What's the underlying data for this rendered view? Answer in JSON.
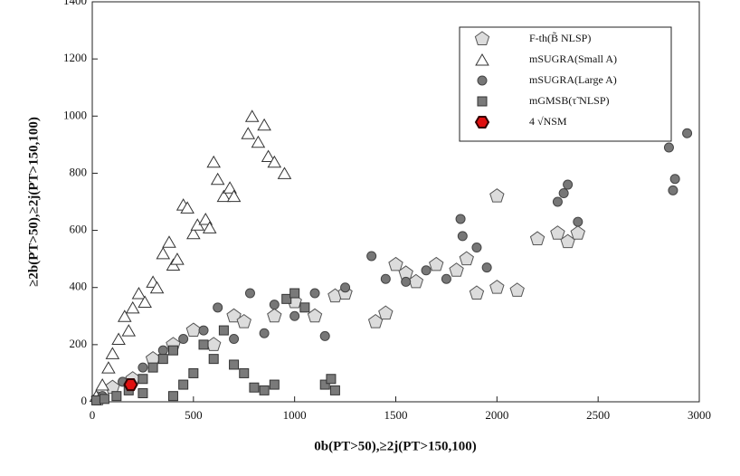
{
  "chart_data": {
    "type": "scatter",
    "xlabel": "0b(PT>50),≥2j(PT>150,100)",
    "ylabel": "≥2b(PT>50),≥2j(PT>150,100)",
    "xlim": [
      0,
      3000
    ],
    "xticks": [
      0,
      500,
      1000,
      1500,
      2000,
      2500,
      3000
    ],
    "ylim": [
      0,
      1400
    ],
    "yticks": [
      0,
      200,
      400,
      600,
      800,
      1000,
      1200,
      1400
    ],
    "legend": "upper right",
    "series": [
      {
        "name": "F-th(B̃ NLSP)",
        "marker": "pentagon",
        "color": "#dcdcdc",
        "x": [
          30,
          100,
          200,
          300,
          400,
          500,
          600,
          700,
          750,
          900,
          1000,
          1100,
          1200,
          1250,
          1400,
          1450,
          1500,
          1550,
          1600,
          1700,
          1800,
          1850,
          1900,
          2000,
          2100,
          2000,
          2200,
          2300,
          2350,
          2400
        ],
        "values": [
          10,
          50,
          80,
          150,
          200,
          250,
          200,
          300,
          280,
          300,
          350,
          300,
          370,
          380,
          280,
          310,
          480,
          450,
          420,
          480,
          460,
          500,
          380,
          400,
          390,
          720,
          570,
          590,
          560,
          590
        ]
      },
      {
        "name": "mSUGRA(Small A)",
        "marker": "triangle",
        "color": "#ffffff",
        "x": [
          20,
          50,
          80,
          100,
          130,
          160,
          180,
          200,
          230,
          260,
          300,
          320,
          350,
          380,
          400,
          420,
          450,
          470,
          500,
          520,
          560,
          580,
          600,
          620,
          650,
          680,
          700,
          770,
          790,
          820,
          850,
          870,
          900,
          950
        ],
        "values": [
          20,
          60,
          120,
          170,
          220,
          300,
          250,
          330,
          380,
          350,
          420,
          400,
          520,
          560,
          480,
          500,
          690,
          680,
          590,
          620,
          640,
          610,
          840,
          780,
          720,
          750,
          720,
          940,
          1000,
          910,
          970,
          860,
          840,
          800
        ]
      },
      {
        "name": "mSUGRA(Large A)",
        "marker": "circle",
        "color": "#777777",
        "x": [
          50,
          150,
          250,
          350,
          450,
          550,
          620,
          700,
          780,
          850,
          900,
          1000,
          1100,
          1150,
          1250,
          1380,
          1450,
          1550,
          1650,
          1750,
          1820,
          1830,
          1900,
          1950,
          2300,
          2330,
          2350,
          2400,
          2850,
          2870,
          2880,
          2940
        ],
        "values": [
          20,
          70,
          120,
          180,
          220,
          250,
          330,
          220,
          380,
          240,
          340,
          300,
          380,
          230,
          400,
          510,
          430,
          420,
          460,
          430,
          640,
          580,
          540,
          470,
          700,
          730,
          760,
          630,
          890,
          740,
          780,
          940
        ]
      },
      {
        "name": "mGMSB(τ̃ NLSP)",
        "marker": "square",
        "color": "#7a7a7a",
        "x": [
          20,
          60,
          120,
          180,
          250,
          250,
          300,
          350,
          400,
          400,
          450,
          500,
          550,
          600,
          650,
          700,
          750,
          800,
          850,
          900,
          960,
          1000,
          1050,
          1150,
          1180,
          1200
        ],
        "values": [
          5,
          10,
          20,
          40,
          80,
          30,
          120,
          150,
          180,
          20,
          60,
          100,
          200,
          150,
          250,
          130,
          100,
          50,
          40,
          60,
          360,
          380,
          330,
          60,
          80,
          40
        ]
      },
      {
        "name": "4 √NSM",
        "marker": "hexagon",
        "color": "#e01010",
        "x": [
          190
        ],
        "values": [
          60
        ]
      }
    ]
  }
}
